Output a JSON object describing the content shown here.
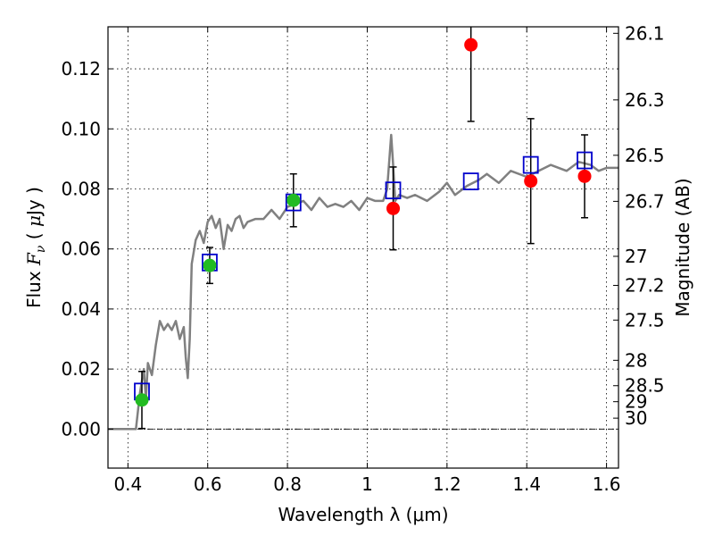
{
  "chart_data": {
    "type": "scatter",
    "xlabel": "Wavelength  λ (μm)",
    "ylabel_parts": {
      "pre": "Flux  ",
      "var": "F",
      "sub": "ν",
      "post": "  ( ",
      "mu": "μ",
      "unit": "Jy )"
    },
    "y2label": "Magnitude (AB)",
    "xlim": [
      0.35,
      1.63
    ],
    "ylim": [
      -0.013,
      0.134
    ],
    "grid": true,
    "x_ticks": [
      {
        "v": 0.4,
        "label": "0.4"
      },
      {
        "v": 0.6,
        "label": "0.6"
      },
      {
        "v": 0.8,
        "label": "0.8"
      },
      {
        "v": 1.0,
        "label": "1"
      },
      {
        "v": 1.2,
        "label": "1.2"
      },
      {
        "v": 1.4,
        "label": "1.4"
      },
      {
        "v": 1.6,
        "label": "1.6"
      }
    ],
    "y_ticks": [
      {
        "v": 0.0,
        "label": "0.00"
      },
      {
        "v": 0.02,
        "label": "0.02"
      },
      {
        "v": 0.04,
        "label": "0.04"
      },
      {
        "v": 0.06,
        "label": "0.06"
      },
      {
        "v": 0.08,
        "label": "0.08"
      },
      {
        "v": 0.1,
        "label": "0.10"
      },
      {
        "v": 0.12,
        "label": "0.12"
      }
    ],
    "mag_ticks": [
      {
        "mag": 26.1,
        "label": "26.1"
      },
      {
        "mag": 26.3,
        "label": "26.3"
      },
      {
        "mag": 26.5,
        "label": "26.5"
      },
      {
        "mag": 26.7,
        "label": "26.7"
      },
      {
        "mag": 27,
        "label": "27"
      },
      {
        "mag": 27.2,
        "label": "27.2"
      },
      {
        "mag": 27.5,
        "label": "27.5"
      },
      {
        "mag": 28,
        "label": "28"
      },
      {
        "mag": 28.5,
        "label": "28.5"
      },
      {
        "mag": 29,
        "label": "29"
      },
      {
        "mag": 30,
        "label": "30"
      }
    ],
    "series": [
      {
        "name": "model_sed",
        "kind": "line",
        "color": "#808080",
        "x": [
          0.35,
          0.42,
          0.43,
          0.44,
          0.445,
          0.45,
          0.46,
          0.47,
          0.48,
          0.49,
          0.5,
          0.51,
          0.52,
          0.53,
          0.54,
          0.545,
          0.55,
          0.555,
          0.56,
          0.57,
          0.58,
          0.59,
          0.6,
          0.61,
          0.62,
          0.63,
          0.64,
          0.65,
          0.66,
          0.67,
          0.68,
          0.69,
          0.7,
          0.72,
          0.74,
          0.76,
          0.78,
          0.8,
          0.82,
          0.84,
          0.86,
          0.88,
          0.9,
          0.92,
          0.94,
          0.96,
          0.98,
          1.0,
          1.02,
          1.04,
          1.05,
          1.06,
          1.065,
          1.07,
          1.08,
          1.1,
          1.12,
          1.15,
          1.18,
          1.2,
          1.22,
          1.25,
          1.28,
          1.3,
          1.33,
          1.36,
          1.4,
          1.43,
          1.46,
          1.5,
          1.53,
          1.56,
          1.58,
          1.6,
          1.63
        ],
        "y": [
          0.0,
          0.0,
          0.012,
          0.02,
          0.01,
          0.022,
          0.018,
          0.028,
          0.036,
          0.033,
          0.035,
          0.033,
          0.036,
          0.03,
          0.034,
          0.024,
          0.017,
          0.03,
          0.055,
          0.063,
          0.066,
          0.062,
          0.069,
          0.071,
          0.067,
          0.07,
          0.06,
          0.068,
          0.066,
          0.07,
          0.071,
          0.067,
          0.069,
          0.07,
          0.07,
          0.073,
          0.07,
          0.074,
          0.075,
          0.076,
          0.073,
          0.077,
          0.074,
          0.075,
          0.074,
          0.076,
          0.073,
          0.077,
          0.076,
          0.076,
          0.08,
          0.098,
          0.088,
          0.076,
          0.078,
          0.077,
          0.078,
          0.076,
          0.079,
          0.082,
          0.078,
          0.081,
          0.083,
          0.085,
          0.082,
          0.086,
          0.084,
          0.086,
          0.088,
          0.086,
          0.089,
          0.088,
          0.086,
          0.087,
          0.087
        ]
      },
      {
        "name": "model_band_flux",
        "kind": "square",
        "color": "#0000cc",
        "x": [
          0.435,
          0.605,
          0.815,
          1.065,
          1.26,
          1.41,
          1.545
        ],
        "y": [
          0.0125,
          0.0555,
          0.0755,
          0.0795,
          0.0825,
          0.088,
          0.0895
        ]
      },
      {
        "name": "observed_detection",
        "kind": "circle",
        "color": "#22bb22",
        "x": [
          0.435,
          0.605,
          0.815
        ],
        "y": [
          0.0097,
          0.0545,
          0.0762
        ],
        "err": [
          0.0095,
          0.006,
          0.0088
        ]
      },
      {
        "name": "observed_other",
        "kind": "circle",
        "color": "#ff0000",
        "x": [
          1.065,
          1.26,
          1.41,
          1.545
        ],
        "y": [
          0.0735,
          0.128,
          0.0826,
          0.0842
        ],
        "err": [
          0.0138,
          0.0255,
          0.0208,
          0.0138
        ]
      }
    ]
  }
}
